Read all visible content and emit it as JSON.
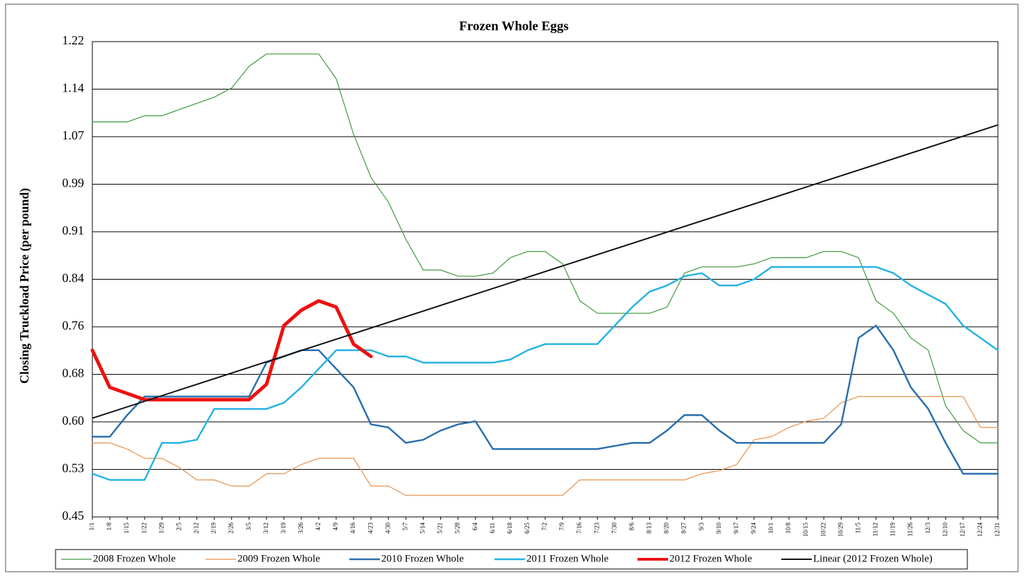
{
  "chart_data": {
    "type": "line",
    "title": "Frozen Whole Eggs",
    "y_label": "Closing Truckload Price (per pound)",
    "categories": [
      "1/1",
      "1/8",
      "1/15",
      "1/22",
      "1/29",
      "2/5",
      "2/12",
      "2/19",
      "2/26",
      "3/5",
      "3/12",
      "3/19",
      "3/26",
      "4/2",
      "4/9",
      "4/16",
      "4/23",
      "4/30",
      "5/7",
      "5/14",
      "5/21",
      "5/28",
      "6/4",
      "6/11",
      "6/18",
      "6/25",
      "7/2",
      "7/9",
      "7/16",
      "7/23",
      "7/30",
      "8/6",
      "8/13",
      "8/20",
      "8/27",
      "9/3",
      "9/10",
      "9/17",
      "9/24",
      "10/1",
      "10/8",
      "10/15",
      "10/22",
      "10/29",
      "11/5",
      "11/12",
      "11/19",
      "11/26",
      "12/3",
      "12/10",
      "12/17",
      "12/24",
      "12/31"
    ],
    "ylim": [
      0.45,
      1.22
    ],
    "yticks": [
      {
        "value": 0.45,
        "label": "0.45"
      },
      {
        "value": 0.527,
        "label": "0.53"
      },
      {
        "value": 0.604,
        "label": "0.60"
      },
      {
        "value": 0.681,
        "label": "0.68"
      },
      {
        "value": 0.758,
        "label": "0.76"
      },
      {
        "value": 0.835,
        "label": "0.84"
      },
      {
        "value": 0.912,
        "label": "0.91"
      },
      {
        "value": 0.989,
        "label": "0.99"
      },
      {
        "value": 1.066,
        "label": "1.07"
      },
      {
        "value": 1.143,
        "label": "1.14"
      },
      {
        "value": 1.22,
        "label": "1.22"
      }
    ],
    "grid": true,
    "legend": "bottom",
    "series": [
      {
        "name": "2008 Frozen Whole",
        "color": "#3a9a3a",
        "width": 1.2,
        "values": [
          1.09,
          1.09,
          1.09,
          1.1,
          1.1,
          1.11,
          1.12,
          1.13,
          1.145,
          1.18,
          1.2,
          1.2,
          1.2,
          1.2,
          1.16,
          1.07,
          1.0,
          0.96,
          0.9,
          0.85,
          0.85,
          0.84,
          0.84,
          0.845,
          0.87,
          0.88,
          0.88,
          0.86,
          0.8,
          0.78,
          0.78,
          0.78,
          0.78,
          0.79,
          0.845,
          0.855,
          0.855,
          0.855,
          0.86,
          0.87,
          0.87,
          0.87,
          0.88,
          0.88,
          0.87,
          0.8,
          0.78,
          0.74,
          0.72,
          0.63,
          0.59,
          0.57,
          0.57
        ]
      },
      {
        "name": "2009 Frozen Whole",
        "color": "#e8914a",
        "width": 1.2,
        "values": [
          0.57,
          0.57,
          0.56,
          0.545,
          0.545,
          0.53,
          0.51,
          0.51,
          0.5,
          0.5,
          0.52,
          0.52,
          0.535,
          0.545,
          0.545,
          0.545,
          0.5,
          0.5,
          0.485,
          0.485,
          0.485,
          0.485,
          0.485,
          0.485,
          0.485,
          0.485,
          0.485,
          0.485,
          0.51,
          0.51,
          0.51,
          0.51,
          0.51,
          0.51,
          0.51,
          0.52,
          0.525,
          0.535,
          0.575,
          0.58,
          0.595,
          0.605,
          0.61,
          0.635,
          0.645,
          0.645,
          0.645,
          0.645,
          0.645,
          0.645,
          0.645,
          0.595,
          0.595
        ]
      },
      {
        "name": "2010 Frozen Whole",
        "color": "#2a6fad",
        "width": 2.5,
        "values": [
          0.58,
          0.58,
          0.615,
          0.645,
          0.645,
          0.645,
          0.645,
          0.645,
          0.645,
          0.645,
          0.7,
          0.71,
          0.72,
          0.72,
          0.69,
          0.66,
          0.6,
          0.595,
          0.57,
          0.575,
          0.59,
          0.6,
          0.605,
          0.56,
          0.56,
          0.56,
          0.56,
          0.56,
          0.56,
          0.56,
          0.565,
          0.57,
          0.57,
          0.59,
          0.615,
          0.615,
          0.59,
          0.57,
          0.57,
          0.57,
          0.57,
          0.57,
          0.57,
          0.6,
          0.74,
          0.76,
          0.72,
          0.66,
          0.625,
          0.57,
          0.52,
          0.52,
          0.52
        ]
      },
      {
        "name": "2011 Frozen Whole",
        "color": "#26b3e3",
        "width": 2.5,
        "values": [
          0.52,
          0.51,
          0.51,
          0.51,
          0.57,
          0.57,
          0.575,
          0.625,
          0.625,
          0.625,
          0.625,
          0.635,
          0.66,
          0.69,
          0.72,
          0.72,
          0.72,
          0.71,
          0.71,
          0.7,
          0.7,
          0.7,
          0.7,
          0.7,
          0.705,
          0.72,
          0.73,
          0.73,
          0.73,
          0.73,
          0.76,
          0.79,
          0.815,
          0.825,
          0.84,
          0.845,
          0.825,
          0.825,
          0.835,
          0.855,
          0.855,
          0.855,
          0.855,
          0.855,
          0.855,
          0.855,
          0.845,
          0.825,
          0.81,
          0.795,
          0.76,
          0.74,
          0.72
        ]
      },
      {
        "name": "2012 Frozen Whole",
        "color": "#ee1111",
        "width": 5,
        "values": [
          0.72,
          0.66,
          0.65,
          0.64,
          0.64,
          0.64,
          0.64,
          0.64,
          0.64,
          0.64,
          0.665,
          0.76,
          0.785,
          0.8,
          0.79,
          0.73,
          0.71,
          null,
          null,
          null,
          null,
          null,
          null,
          null,
          null,
          null,
          null,
          null,
          null,
          null,
          null,
          null,
          null,
          null,
          null,
          null,
          null,
          null,
          null,
          null,
          null,
          null,
          null,
          null,
          null,
          null,
          null,
          null,
          null,
          null,
          null,
          null,
          null
        ]
      }
    ],
    "trendline": {
      "name": "Linear (2012 Frozen Whole)",
      "color": "#111111",
      "width": 2,
      "values": [
        0.61,
        1.085
      ]
    }
  }
}
